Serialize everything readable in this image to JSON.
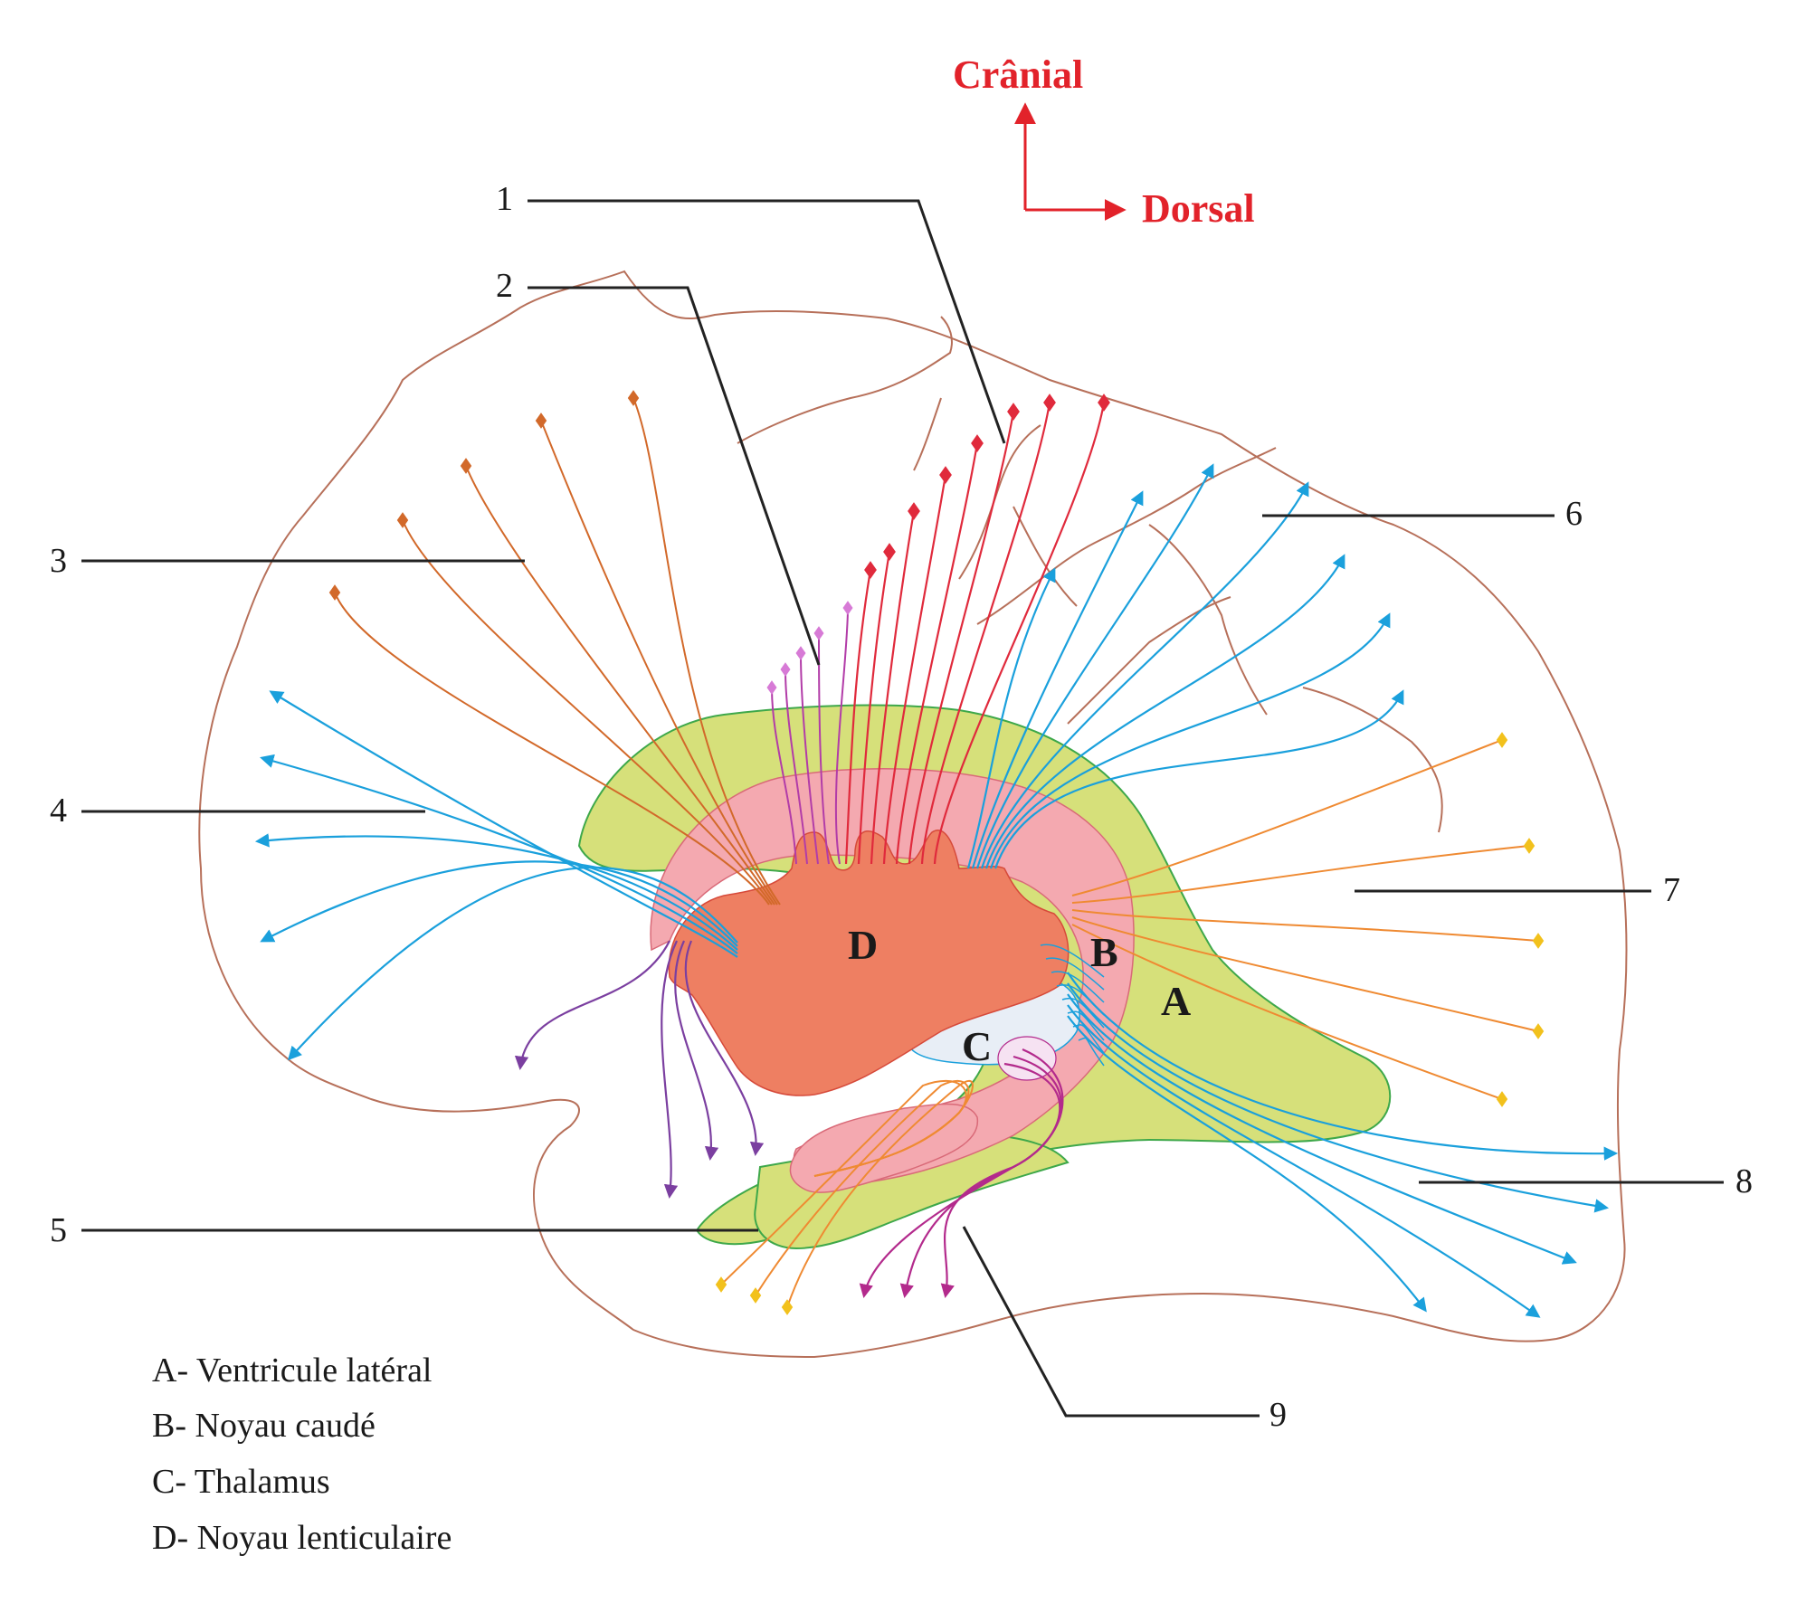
{
  "orientation": {
    "up_label": "Crânial",
    "right_label": "Dorsal",
    "color": "#e2222a"
  },
  "number_labels": [
    "1",
    "2",
    "3",
    "4",
    "5",
    "6",
    "7",
    "8",
    "9"
  ],
  "structures": {
    "A": "A",
    "B": "B",
    "C": "C",
    "D": "D"
  },
  "legend": [
    "A- Ventricule latéral",
    "B- Noyau caudé",
    "C- Thalamus",
    "D- Noyau lenticulaire"
  ],
  "colors": {
    "brain_outline": "#b7705a",
    "ventricle": "#d6e07a",
    "caudate": "#f4a9b0",
    "lentiform": "#ee7f62",
    "thalamus": "#e8eef6",
    "fiber_blue": "#1aa0dc",
    "fiber_red": "#e02a3c",
    "fiber_orange_dark": "#d2692a",
    "fiber_orange": "#ef8a32",
    "fiber_purple": "#7b3fa0",
    "fiber_violet": "#b32a8c",
    "fiber_pink": "#b23ca8"
  }
}
